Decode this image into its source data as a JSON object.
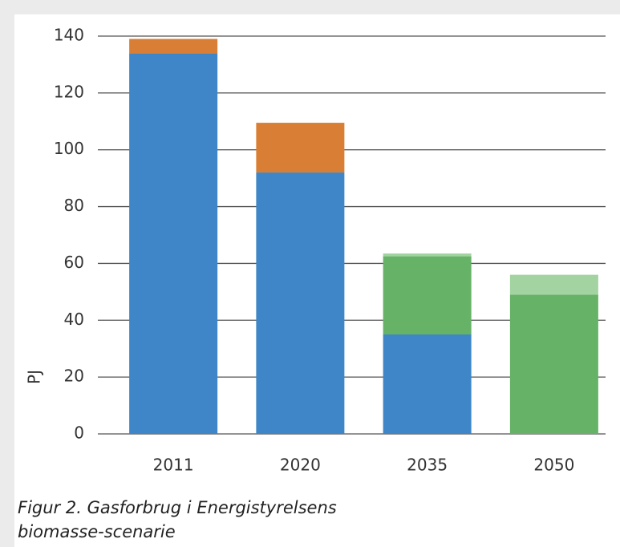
{
  "chart_data": {
    "type": "stacked_bar",
    "title": [
      "Figur 2. Gasforbrug i Energistyrelsens",
      "biomasse-scenarie"
    ],
    "y_label": "PJ",
    "categories": [
      "2011",
      "2020",
      "2035",
      "2050"
    ],
    "series": [
      {
        "color": "#3e86c8",
        "values": [
          134,
          92,
          35,
          0
        ]
      },
      {
        "color": "#d97f35",
        "values": [
          5,
          17.5,
          0,
          0
        ]
      },
      {
        "color": "#66b266",
        "values": [
          0,
          0,
          27.5,
          49
        ]
      },
      {
        "color": "#a3d3a1",
        "values": [
          0,
          0,
          1,
          7
        ]
      }
    ],
    "ylim": [
      0,
      140
    ],
    "yticks": [
      0,
      20,
      40,
      60,
      80,
      100,
      120,
      140
    ],
    "grid": true
  }
}
